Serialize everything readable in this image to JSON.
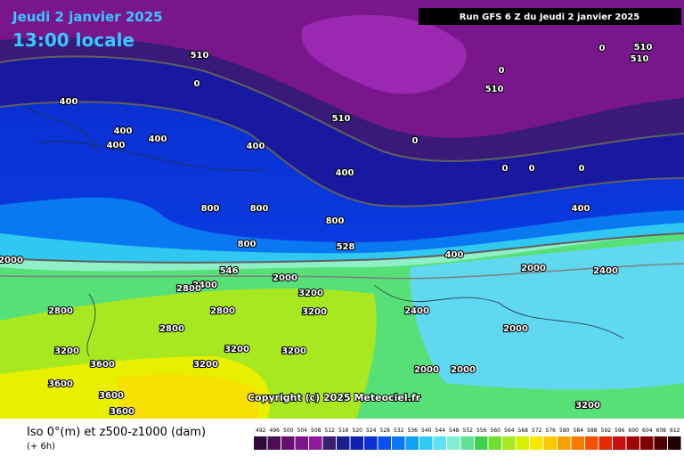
{
  "header": {
    "date": "Jeudi 2 janvier 2025",
    "time": "13:00 locale",
    "run": "Run GFS 6 Z du Jeudi 2 janvier 2025"
  },
  "map": {
    "labels": [
      "510",
      "510",
      "510",
      "510",
      "510",
      "400",
      "400",
      "400",
      "400",
      "400",
      "400",
      "400",
      "400",
      "800",
      "800",
      "800",
      "800",
      "528",
      "546",
      "2000",
      "2000",
      "2000",
      "2400",
      "2400",
      "2800",
      "2800",
      "2800",
      "2800",
      "3200",
      "3200",
      "3200",
      "3200",
      "3200",
      "3200",
      "3600",
      "3600",
      "3600",
      "3600",
      "2400",
      "2000",
      "2000",
      "2000",
      "3200",
      "0",
      "0",
      "0",
      "0",
      "0",
      "0",
      "0"
    ],
    "copyright": "Copyright (c) 2025 Meteociel.fr"
  },
  "legend": {
    "title": "Iso 0°(m) et z500-z1000 (dam)",
    "step": "(+ 6h)",
    "colorbar": {
      "values": [
        492,
        496,
        500,
        504,
        508,
        512,
        516,
        520,
        524,
        528,
        532,
        536,
        540,
        544,
        548,
        552,
        556,
        560,
        564,
        568,
        572,
        576,
        580,
        584,
        588,
        592,
        596,
        600,
        604,
        608,
        612
      ],
      "colors": [
        "#2e0b3a",
        "#4b0e55",
        "#650f70",
        "#7d1489",
        "#8f1aa0",
        "#3a1f6e",
        "#1a1f8a",
        "#1020b0",
        "#0a30d8",
        "#0a50f0",
        "#0a78f5",
        "#10a0f5",
        "#30c8f5",
        "#60e0f0",
        "#80f0d0",
        "#60e090",
        "#40d050",
        "#70e030",
        "#a8e820",
        "#d8f000",
        "#f8e800",
        "#f8c800",
        "#f8a000",
        "#f87800",
        "#f85000",
        "#e82800",
        "#c81010",
        "#a00808",
        "#800000",
        "#500000",
        "#200000"
      ]
    }
  }
}
